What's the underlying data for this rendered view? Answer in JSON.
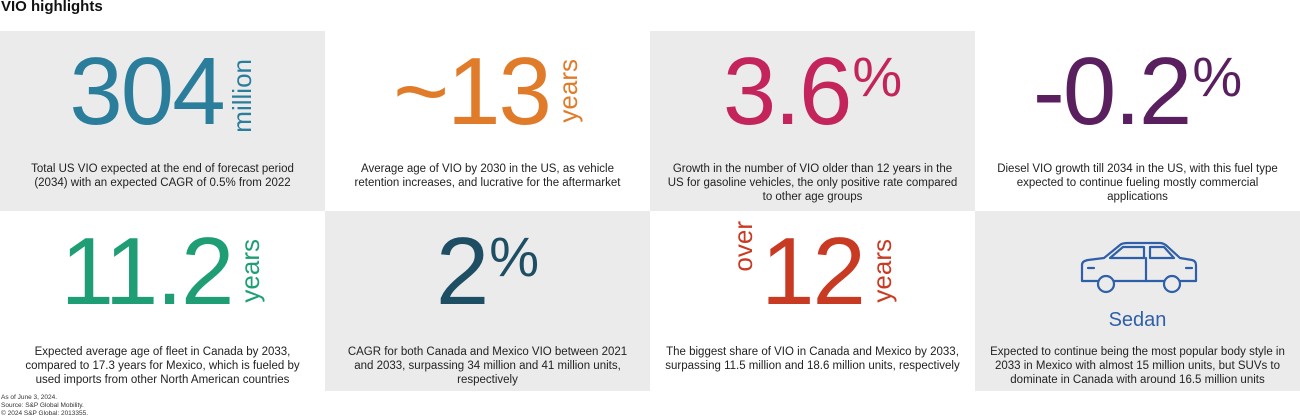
{
  "title": "VIO highlights",
  "colors": {
    "blue": "#2a7d9b",
    "orange": "#e07b2a",
    "crimson": "#c4245c",
    "purple": "#5a1f5e",
    "green": "#1f9e76",
    "navy": "#1d4e63",
    "red": "#c93a23",
    "sedan_blue": "#2f5fa8"
  },
  "tiles": [
    {
      "value": "304",
      "side_label": "million",
      "description": "Total US VIO expected at the end of forecast period (2034) with an expected CAGR of 0.5% from 2022"
    },
    {
      "value": "~13",
      "side_label": "years",
      "description": "Average age of VIO by 2030 in the US, as vehicle retention increases, and lucrative for the aftermarket"
    },
    {
      "value": "3.6",
      "suffix": "%",
      "description": "Growth in the number of VIO older than 12 years in the US for gasoline vehicles, the only positive rate compared to other age groups"
    },
    {
      "value": "-0.2",
      "suffix": "%",
      "description": "Diesel VIO growth till 2034 in the US, with this fuel type expected to continue fueling mostly commercial applications"
    },
    {
      "value": "11.2",
      "side_label": "years",
      "description": "Expected average age of fleet in Canada by 2033, compared to 17.3 years for Mexico, which is fueled by used imports from other North American countries"
    },
    {
      "value": "2",
      "suffix": "%",
      "description": "CAGR for both Canada and Mexico VIO between 2021 and 2033, surpassing 34 million and 41 million units, respectively"
    },
    {
      "value": "12",
      "prefix_label": "over",
      "side_label": "years",
      "description": "The biggest share of VIO in Canada and Mexico by 2033, surpassing 11.5 million and 18.6 million units, respectively"
    },
    {
      "icon": "sedan-car-icon",
      "label": "Sedan",
      "description": "Expected to continue being the most popular body style in 2033 in Mexico with almost 15 million units, but SUVs to dominate in Canada with around 16.5 million units"
    }
  ],
  "footer": {
    "line1": "As of June 3, 2024.",
    "line2": "Source: S&P Global Mobility.",
    "line3": "© 2024 S&P Global: 2013355."
  }
}
